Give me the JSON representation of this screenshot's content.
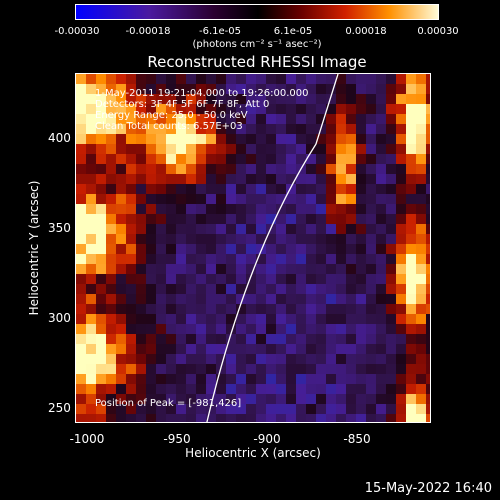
{
  "colorbar": {
    "tick_labels": [
      "-0.00030",
      "-0.00018",
      "-6.1e-05",
      "6.1e-05",
      "0.00018",
      "0.00030"
    ],
    "units": "(photons cm⁻² s⁻¹ asec⁻²)"
  },
  "plot": {
    "title": "Reconstructed RHESSI Image",
    "info_lines": [
      "1-May-2011 19:21:04.000 to 19:26:00.000",
      "Detectors: 3F 4F 5F 6F 7F 8F, Att 0",
      "Energy Range: 25.0 - 50.0 keV",
      "Clean     Total counts: 6.57E+03"
    ],
    "peak_text": "Position of Peak = [-981,426]",
    "x_ticks": [
      "-1000",
      "-950",
      "-900",
      "-850"
    ],
    "y_ticks": [
      "400",
      "350",
      "300",
      "250"
    ],
    "xlabel": "Heliocentric X (arcsec)",
    "ylabel": "Heliocentric Y (arcsec)",
    "limb_color": "#ffffff"
  },
  "footer": {
    "timestamp": "15-May-2022 16:40"
  },
  "colors": {
    "background": "#000000",
    "low": "#2a0b44",
    "mid": "#b0140c",
    "high": "#ffff40"
  }
}
